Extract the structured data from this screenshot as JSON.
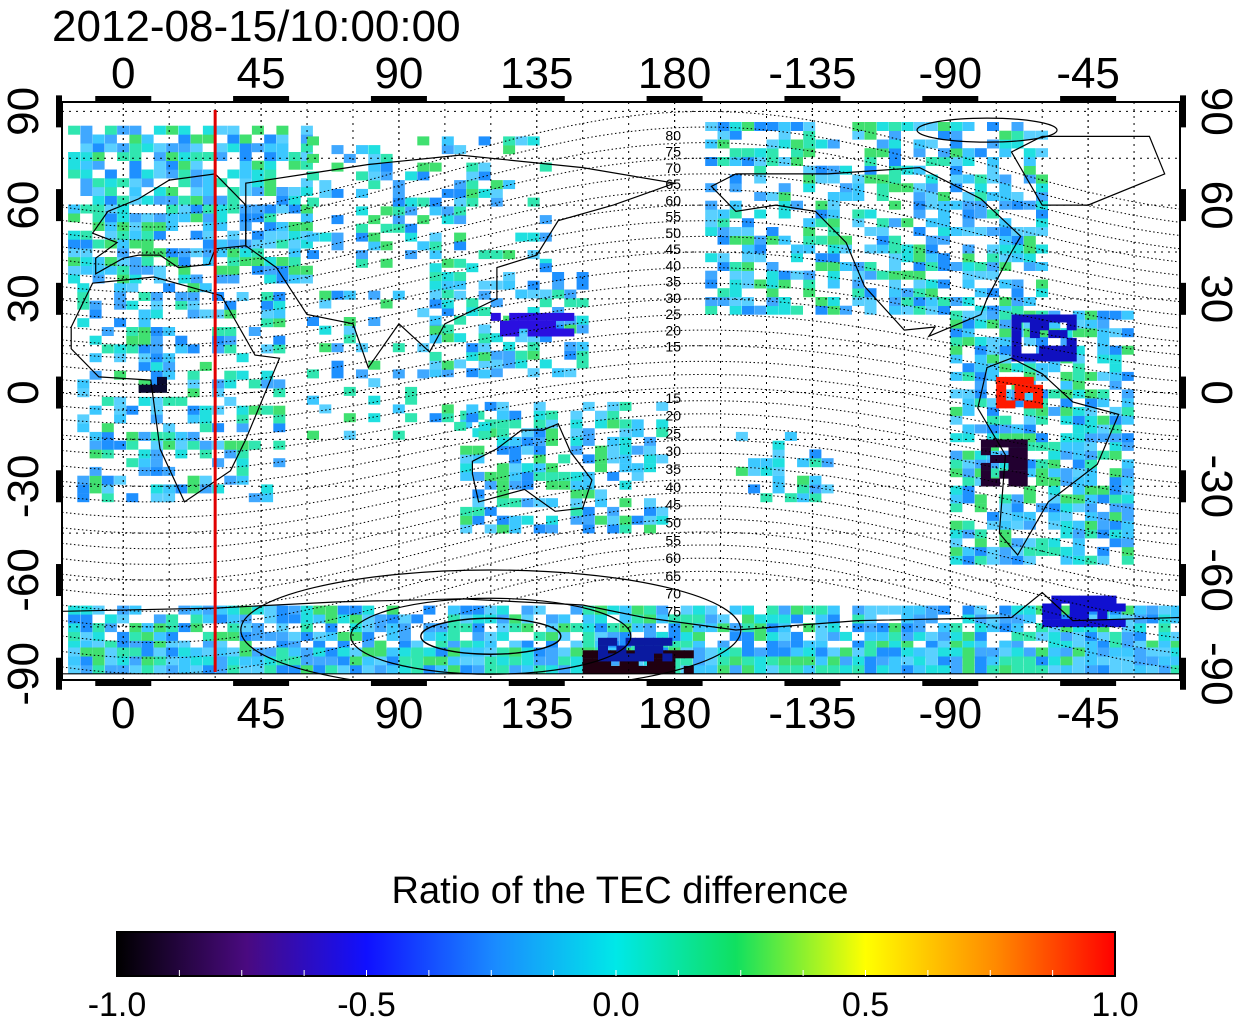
{
  "title": "2012-08-15/10:00:00",
  "map": {
    "top_axis_labels": [
      "0",
      "45",
      "90",
      "135",
      "180",
      "-135",
      "-90",
      "-45"
    ],
    "bottom_axis_labels": [
      "0",
      "45",
      "90",
      "135",
      "180",
      "-135",
      "-90",
      "-45"
    ],
    "left_axis_labels": [
      "90",
      "60",
      "30",
      "0",
      "-30",
      "-60",
      "-90"
    ],
    "right_axis_labels": [
      "90",
      "60",
      "30",
      "0",
      "-30",
      "-60",
      "-90"
    ],
    "longitude_ticks": [
      0,
      45,
      90,
      135,
      180,
      225,
      270,
      315
    ],
    "latitude_ticks": [
      90,
      60,
      30,
      0,
      -30,
      -60,
      -90
    ],
    "lon_range": [
      -20,
      345
    ],
    "lat_range": [
      -92,
      93
    ],
    "marker_longitude": 30,
    "marker_color": "#e00000",
    "contour_labels_north": [
      "80",
      "75",
      "70",
      "65",
      "60",
      "55",
      "50",
      "45",
      "40",
      "35",
      "30",
      "25",
      "20",
      "15"
    ],
    "contour_labels_south": [
      "15",
      "20",
      "25",
      "30",
      "35",
      "40",
      "45",
      "50",
      "55",
      "60",
      "65",
      "70",
      "75"
    ],
    "grid": true
  },
  "colorbar": {
    "title": "Ratio of the TEC difference",
    "labels": [
      "-1.0",
      "-0.5",
      "0.0",
      "0.5",
      "1.0"
    ],
    "range": [
      -1.0,
      1.0
    ],
    "colormap": "black-purple-blue-cyan-green-yellow-red"
  }
}
